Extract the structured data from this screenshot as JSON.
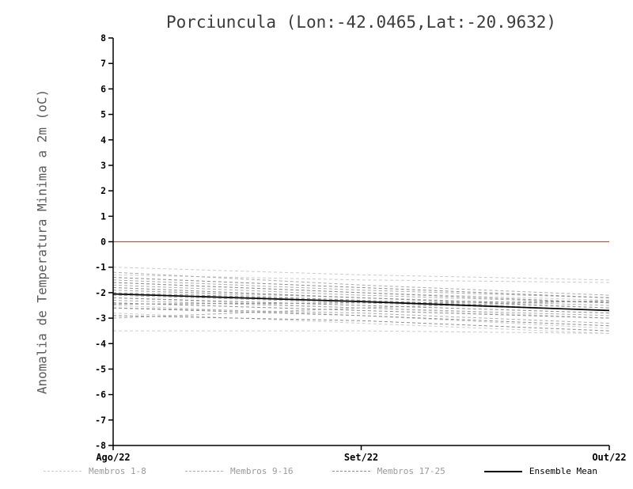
{
  "chart_data": {
    "type": "line",
    "title": "Porciuncula (Lon:-42.0465,Lat:-20.9632)",
    "xlabel": "",
    "ylabel": "Anomalia de Temperatura Minima a 2m (oC)",
    "x": [
      "Ago/22",
      "Set/22",
      "Out/22"
    ],
    "ylim": [
      -8,
      8
    ],
    "y_ticks": [
      8,
      7,
      6,
      5,
      4,
      3,
      2,
      1,
      0,
      -1,
      -2,
      -3,
      -4,
      -5,
      -6,
      -7,
      -8
    ],
    "grid": false,
    "legend_position": "bottom",
    "reference_line": {
      "y": 0,
      "color": "#f03c3c"
    },
    "series": [
      {
        "name": "Membros 1-8",
        "color": "#cbcbcb",
        "style": "dashed",
        "members": [
          [
            -1.0,
            -1.3,
            -1.5
          ],
          [
            -1.3,
            -1.5,
            -1.6
          ],
          [
            -1.6,
            -2.0,
            -2.3
          ],
          [
            -1.9,
            -2.3,
            -2.6
          ],
          [
            -2.2,
            -2.6,
            -3.0
          ],
          [
            -2.5,
            -2.9,
            -3.4
          ],
          [
            -2.8,
            -3.2,
            -3.6
          ],
          [
            -3.5,
            -3.5,
            -3.6
          ]
        ]
      },
      {
        "name": "Membros 9-16",
        "color": "#ababab",
        "style": "dashed",
        "members": [
          [
            -1.2,
            -1.7,
            -2.1
          ],
          [
            -1.5,
            -1.9,
            -2.2
          ],
          [
            -1.7,
            -2.1,
            -2.4
          ],
          [
            -1.9,
            -2.2,
            -2.5
          ],
          [
            -2.1,
            -2.4,
            -2.7
          ],
          [
            -2.3,
            -2.6,
            -2.9
          ],
          [
            -2.6,
            -2.8,
            -3.2
          ],
          [
            -3.0,
            -2.6,
            -2.3
          ]
        ]
      },
      {
        "name": "Membros 17-25",
        "color": "#8c8c8c",
        "style": "dashed",
        "members": [
          [
            -1.4,
            -1.8,
            -2.2
          ],
          [
            -1.6,
            -2.0,
            -2.4
          ],
          [
            -1.8,
            -2.2,
            -2.6
          ],
          [
            -2.0,
            -2.3,
            -2.7
          ],
          [
            -2.2,
            -2.5,
            -2.8
          ],
          [
            -2.4,
            -2.7,
            -3.0
          ],
          [
            -2.6,
            -2.9,
            -3.3
          ],
          [
            -2.9,
            -3.1,
            -3.5
          ],
          [
            -2.45,
            -2.4,
            -2.35
          ]
        ]
      },
      {
        "name": "Ensemble Mean",
        "color": "#000000",
        "style": "solid",
        "members": [
          [
            -2.05,
            -2.35,
            -2.7
          ]
        ]
      }
    ]
  },
  "legend": {
    "items": [
      {
        "label": "Membros 1-8"
      },
      {
        "label": "Membros 9-16"
      },
      {
        "label": "Membros 17-25"
      },
      {
        "label": "Ensemble Mean"
      }
    ]
  }
}
